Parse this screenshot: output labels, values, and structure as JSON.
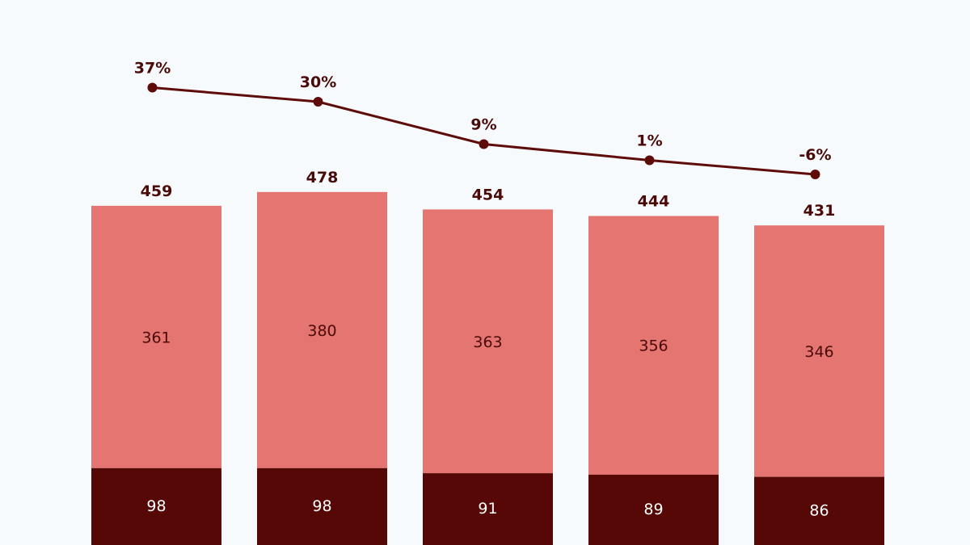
{
  "chart_data": {
    "type": "bar",
    "stacked": true,
    "categories": [
      "",
      "",
      "",
      "",
      ""
    ],
    "series": [
      {
        "values": [
          98,
          98,
          91,
          89,
          86
        ],
        "color": "#560806"
      },
      {
        "values": [
          361,
          380,
          363,
          356,
          346
        ],
        "color": "#e47571"
      }
    ],
    "totals": [
      459,
      478,
      454,
      444,
      431
    ],
    "line": {
      "values": [
        37,
        30,
        9,
        1,
        -6
      ],
      "labels": [
        "37%",
        "30%",
        "9%",
        "1%",
        "-6%"
      ],
      "color": "#5e0c0a"
    },
    "legend": "none",
    "grid": false,
    "title": "",
    "xlabel": "",
    "ylabel": ""
  }
}
